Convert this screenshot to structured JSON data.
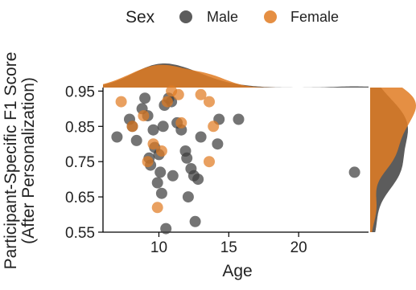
{
  "chart_data": {
    "type": "scatter",
    "xlabel": "Age",
    "ylabel": [
      "Participant-Specific F1 Score",
      "(After Personalization)"
    ],
    "xlim": [
      6,
      25
    ],
    "ylim": [
      0.55,
      0.96
    ],
    "xticks": [
      10,
      15,
      20
    ],
    "yticks": [
      0.55,
      0.65,
      0.75,
      0.85,
      0.95
    ],
    "ytick_labels": [
      "0.55",
      "0.65",
      "0.75",
      "0.85",
      "0.95"
    ],
    "xtick_labels": [
      "10",
      "15",
      "20"
    ],
    "grid": false,
    "legend": {
      "title": "Sex",
      "position": "top",
      "entries": [
        "Male",
        "Female"
      ]
    },
    "marginals": "density (top: age, right: F1 score)",
    "colors": {
      "Male": "#3f3f3f",
      "Female": "#e07b22"
    },
    "series": [
      {
        "name": "Male",
        "points": [
          [
            7.0,
            0.82
          ],
          [
            7.9,
            0.87
          ],
          [
            8.1,
            0.85
          ],
          [
            8.4,
            0.81
          ],
          [
            8.8,
            0.9
          ],
          [
            9.0,
            0.93
          ],
          [
            9.2,
            0.88
          ],
          [
            9.3,
            0.76
          ],
          [
            9.4,
            0.74
          ],
          [
            9.6,
            0.84
          ],
          [
            9.7,
            0.79
          ],
          [
            9.9,
            0.69
          ],
          [
            10.0,
            0.77
          ],
          [
            10.1,
            0.72
          ],
          [
            10.2,
            0.66
          ],
          [
            10.3,
            0.85
          ],
          [
            10.4,
            0.91
          ],
          [
            10.5,
            0.56
          ],
          [
            10.7,
            0.93
          ],
          [
            11.0,
            0.71
          ],
          [
            11.3,
            0.86
          ],
          [
            11.6,
            0.84
          ],
          [
            11.9,
            0.78
          ],
          [
            12.0,
            0.76
          ],
          [
            12.1,
            0.65
          ],
          [
            12.3,
            0.73
          ],
          [
            12.5,
            0.71
          ],
          [
            12.6,
            0.58
          ],
          [
            12.8,
            0.7
          ],
          [
            13.0,
            0.82
          ],
          [
            14.2,
            0.8
          ],
          [
            14.3,
            0.87
          ],
          [
            15.7,
            0.87
          ],
          [
            24.0,
            0.72
          ],
          [
            10.9,
            0.92
          ]
        ]
      },
      {
        "name": "Female",
        "points": [
          [
            7.3,
            0.92
          ],
          [
            8.1,
            0.85
          ],
          [
            9.2,
            0.75
          ],
          [
            9.6,
            0.8
          ],
          [
            9.9,
            0.62
          ],
          [
            10.2,
            0.78
          ],
          [
            10.6,
            0.92
          ],
          [
            10.9,
            0.95
          ],
          [
            11.4,
            0.94
          ],
          [
            11.6,
            0.86
          ],
          [
            13.0,
            0.94
          ],
          [
            13.6,
            0.92
          ],
          [
            13.6,
            0.75
          ],
          [
            13.9,
            0.85
          ],
          [
            8.9,
            0.88
          ]
        ]
      }
    ]
  }
}
